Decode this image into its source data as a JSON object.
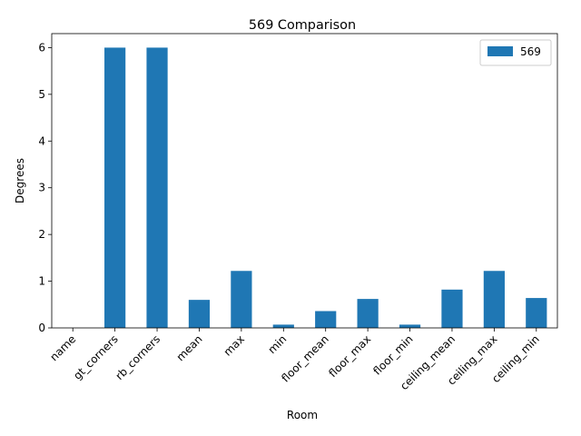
{
  "chart_data": {
    "type": "bar",
    "title": "569 Comparison",
    "xlabel": "Room",
    "ylabel": "Degrees",
    "categories": [
      "name",
      "gt_corners",
      "rb_corners",
      "mean",
      "max",
      "min",
      "floor_mean",
      "floor_max",
      "floor_min",
      "ceiling_mean",
      "ceiling_max",
      "ceiling_min"
    ],
    "series": [
      {
        "name": "569",
        "color": "#1f77b4",
        "values": [
          0,
          6,
          6,
          0.6,
          1.22,
          0.07,
          0.36,
          0.62,
          0.07,
          0.82,
          1.22,
          0.64
        ]
      }
    ],
    "ylim": [
      0,
      6.3
    ],
    "yticks": [
      0,
      1,
      2,
      3,
      4,
      5,
      6
    ],
    "grid": false,
    "legend": "top-right"
  }
}
